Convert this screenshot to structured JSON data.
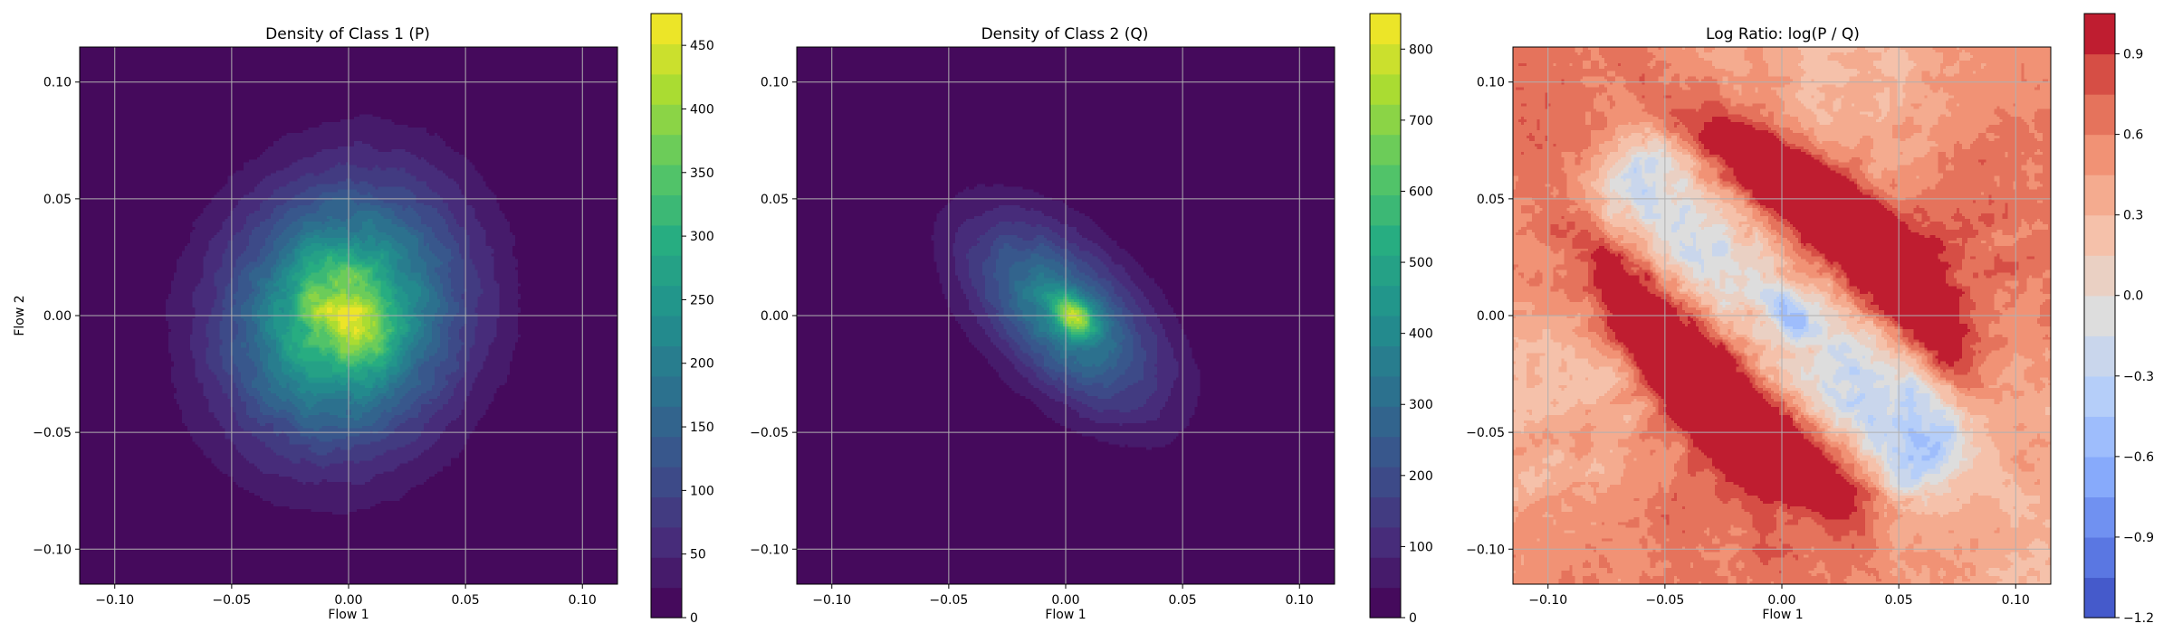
{
  "chart_data": [
    {
      "type": "heatmap",
      "title": "Density of Class 1 (P)",
      "xlabel": "Flow 1",
      "ylabel": "Flow 2",
      "xlim": [
        -0.115,
        0.115
      ],
      "ylim": [
        -0.115,
        0.115
      ],
      "x_ticks": [
        -0.1,
        -0.05,
        0.0,
        0.05,
        0.1
      ],
      "y_ticks": [
        -0.1,
        -0.05,
        0.0,
        0.05,
        0.1
      ],
      "x_tick_labels": [
        "−0.10",
        "−0.05",
        "0.00",
        "0.05",
        "0.10"
      ],
      "y_tick_labels": [
        "−0.10",
        "−0.05",
        "0.00",
        "0.05",
        "0.10"
      ],
      "grid": true,
      "colormap": "viridis",
      "levels": 20,
      "colorbar": {
        "min": 0,
        "max": 475,
        "ticks": [
          0,
          50,
          100,
          150,
          200,
          250,
          300,
          350,
          400,
          450
        ],
        "tick_labels": [
          "0",
          "50",
          "100",
          "150",
          "200",
          "250",
          "300",
          "350",
          "400",
          "450"
        ]
      },
      "blobs": [
        {
          "cx": -0.002,
          "cy": 0.0,
          "sx": 0.033,
          "sy": 0.037,
          "rho": 0.1,
          "peak": 330
        },
        {
          "cx": -0.006,
          "cy": 0.004,
          "sx": 0.012,
          "sy": 0.013,
          "rho": 0.0,
          "peak": 90
        },
        {
          "cx": 0.006,
          "cy": -0.008,
          "sx": 0.011,
          "sy": 0.011,
          "rho": 0.0,
          "peak": 55
        }
      ]
    },
    {
      "type": "heatmap",
      "title": "Density of Class 2 (Q)",
      "xlabel": "Flow 1",
      "ylabel": "",
      "xlim": [
        -0.115,
        0.115
      ],
      "ylim": [
        -0.115,
        0.115
      ],
      "x_ticks": [
        -0.1,
        -0.05,
        0.0,
        0.05,
        0.1
      ],
      "y_ticks": [
        -0.1,
        -0.05,
        0.0,
        0.05,
        0.1
      ],
      "x_tick_labels": [
        "−0.10",
        "−0.05",
        "0.00",
        "0.05",
        "0.10"
      ],
      "y_tick_labels": [
        "−0.10",
        "−0.05",
        "0.00",
        "0.05",
        "0.10"
      ],
      "grid": true,
      "colormap": "viridis",
      "levels": 20,
      "colorbar": {
        "min": 0,
        "max": 850,
        "ticks": [
          0,
          100,
          200,
          300,
          400,
          500,
          600,
          700,
          800
        ],
        "tick_labels": [
          "0",
          "100",
          "200",
          "300",
          "400",
          "500",
          "600",
          "700",
          "800"
        ]
      },
      "blobs": [
        {
          "cx": 0.0,
          "cy": 0.0,
          "sx": 0.027,
          "sy": 0.027,
          "rho": -0.55,
          "peak": 390
        },
        {
          "cx": 0.003,
          "cy": 0.0,
          "sx": 0.006,
          "sy": 0.006,
          "rho": -0.3,
          "peak": 420
        }
      ]
    },
    {
      "type": "heatmap",
      "title": "Log Ratio: log(P / Q)",
      "xlabel": "Flow 1",
      "ylabel": "",
      "xlim": [
        -0.115,
        0.115
      ],
      "ylim": [
        -0.115,
        0.115
      ],
      "x_ticks": [
        -0.1,
        -0.05,
        0.0,
        0.05,
        0.1
      ],
      "y_ticks": [
        -0.1,
        -0.05,
        0.0,
        0.05,
        0.1
      ],
      "x_tick_labels": [
        "−0.10",
        "−0.05",
        "0.00",
        "0.05",
        "0.10"
      ],
      "y_tick_labels": [
        "−0.10",
        "−0.05",
        "0.00",
        "0.05",
        "0.10"
      ],
      "grid": true,
      "colormap": "coolwarm",
      "levels": 15,
      "colorbar": {
        "min": -1.2,
        "max": 1.05,
        "ticks": [
          -1.2,
          -0.9,
          -0.6,
          -0.3,
          0.0,
          0.3,
          0.6,
          0.9
        ],
        "tick_labels": [
          "−1.2",
          "−0.9",
          "−0.6",
          "−0.3",
          "0.0",
          "0.3",
          "0.6",
          "0.9"
        ]
      }
    }
  ]
}
